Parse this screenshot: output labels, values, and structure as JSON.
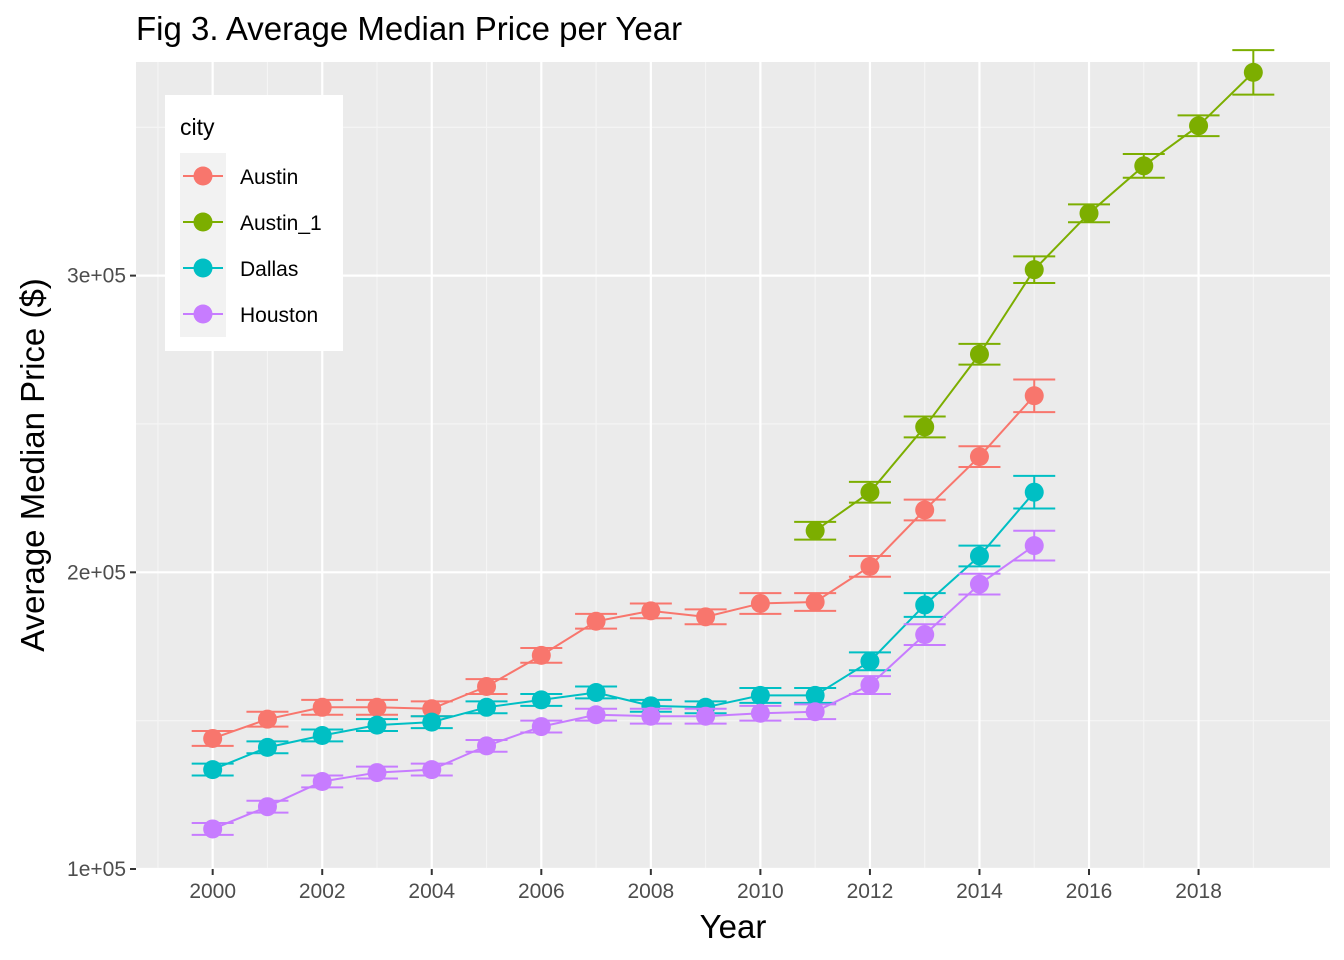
{
  "chart_data": {
    "type": "line",
    "title": "Fig 3. Average Median Price per Year",
    "xlabel": "Year",
    "ylabel": "Average Median Price ($)",
    "xlim": [
      1998.6,
      2020.4
    ],
    "ylim": [
      100000,
      372000
    ],
    "x_ticks": [
      2000,
      2002,
      2004,
      2006,
      2008,
      2010,
      2012,
      2014,
      2016,
      2018
    ],
    "x_tick_labels": [
      "2000",
      "2002",
      "2004",
      "2006",
      "2008",
      "2010",
      "2012",
      "2014",
      "2016",
      "2018"
    ],
    "y_ticks": [
      100000,
      200000,
      300000
    ],
    "y_tick_labels": [
      "1e+05",
      "2e+05",
      "3e+05"
    ],
    "grid": true,
    "legend": {
      "title": "city",
      "position": "top-left"
    },
    "series": [
      {
        "name": "Austin",
        "color": "#F8766D",
        "x": [
          2000,
          2001,
          2002,
          2003,
          2004,
          2005,
          2006,
          2007,
          2008,
          2009,
          2010,
          2011,
          2012,
          2013,
          2014,
          2015
        ],
        "y": [
          144000,
          150500,
          154500,
          154500,
          154000,
          161500,
          172000,
          183500,
          187000,
          185000,
          189500,
          190000,
          202000,
          221000,
          239000,
          259500
        ],
        "err": [
          2500,
          2500,
          2500,
          2500,
          2500,
          2500,
          2500,
          2500,
          2500,
          2500,
          3500,
          3000,
          3500,
          3500,
          3500,
          5500
        ]
      },
      {
        "name": "Austin_1",
        "color": "#7CAE00",
        "x": [
          2011,
          2012,
          2013,
          2014,
          2015,
          2016,
          2017,
          2018,
          2019
        ],
        "y": [
          214000,
          227000,
          249000,
          273500,
          302000,
          321000,
          337000,
          350500,
          368500
        ],
        "err": [
          3000,
          3500,
          3500,
          3500,
          4500,
          3000,
          4000,
          3500,
          7500
        ]
      },
      {
        "name": "Dallas",
        "color": "#00BFC4",
        "x": [
          2000,
          2001,
          2002,
          2003,
          2004,
          2005,
          2006,
          2007,
          2008,
          2009,
          2010,
          2011,
          2012,
          2013,
          2014,
          2015
        ],
        "y": [
          133500,
          141000,
          145000,
          148500,
          149500,
          154500,
          157000,
          159500,
          155000,
          154500,
          158500,
          158500,
          170000,
          189000,
          205500,
          227000
        ],
        "err": [
          2000,
          2000,
          2000,
          2000,
          2000,
          2000,
          2000,
          2000,
          2000,
          2000,
          2500,
          2500,
          3000,
          4000,
          3500,
          5500
        ]
      },
      {
        "name": "Houston",
        "color": "#C77CFF",
        "x": [
          2000,
          2001,
          2002,
          2003,
          2004,
          2005,
          2006,
          2007,
          2008,
          2009,
          2010,
          2011,
          2012,
          2013,
          2014,
          2015
        ],
        "y": [
          113500,
          121000,
          129500,
          132500,
          133500,
          141500,
          148000,
          152000,
          151500,
          151500,
          152500,
          153000,
          162000,
          179000,
          196000,
          209000
        ],
        "err": [
          2000,
          2000,
          2000,
          2000,
          2000,
          2000,
          2000,
          2000,
          2500,
          2500,
          2500,
          2500,
          3000,
          3500,
          3500,
          5000
        ]
      }
    ]
  }
}
